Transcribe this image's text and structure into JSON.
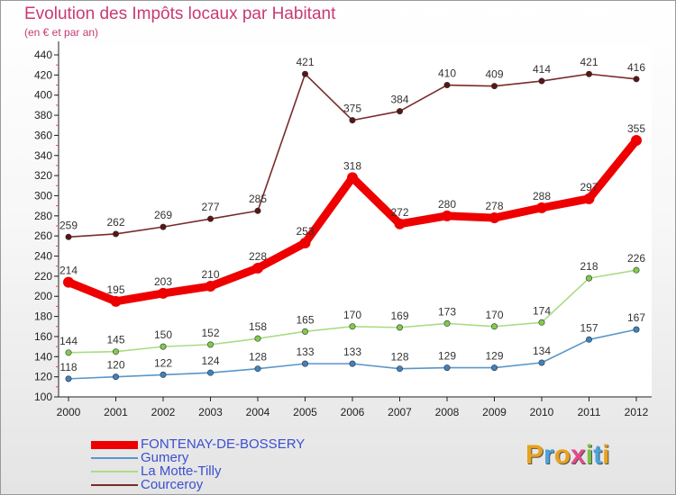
{
  "title": "Evolution des Impôts locaux par Habitant",
  "subtitle": "(en € et par an)",
  "logo_text": "Proxiti",
  "chart_data": {
    "type": "line",
    "title": "Evolution des Impôts locaux par Habitant",
    "ylabel": "(en € et par an)",
    "xlabel": "",
    "ylim": [
      100,
      440
    ],
    "ytick_step": 20,
    "grid": false,
    "categories": [
      "2000",
      "2001",
      "2002",
      "2003",
      "2004",
      "2005",
      "2006",
      "2007",
      "2008",
      "2009",
      "2010",
      "2011",
      "2012"
    ],
    "series": [
      {
        "name": "FONTENAY-DE-BOSSERY",
        "color": "#ee0000",
        "marker": "#ee0000",
        "values": [
          214,
          195,
          203,
          210,
          228,
          253,
          318,
          272,
          280,
          278,
          288,
          297,
          355
        ]
      },
      {
        "name": "Gumery",
        "color": "#5b95c9",
        "marker": "#3f82c0",
        "values": [
          118,
          120,
          122,
          124,
          128,
          133,
          133,
          128,
          129,
          129,
          134,
          157,
          167
        ]
      },
      {
        "name": "La Motte-Tilly",
        "color": "#a9dc86",
        "marker": "#7fcc4d",
        "values": [
          144,
          145,
          150,
          152,
          158,
          165,
          170,
          169,
          173,
          170,
          174,
          218,
          226
        ]
      },
      {
        "name": "Courceroy",
        "color": "#7a2a2a",
        "marker": "#5a1515",
        "values": [
          259,
          262,
          269,
          277,
          285,
          421,
          375,
          384,
          410,
          409,
          414,
          421,
          416
        ]
      }
    ]
  }
}
